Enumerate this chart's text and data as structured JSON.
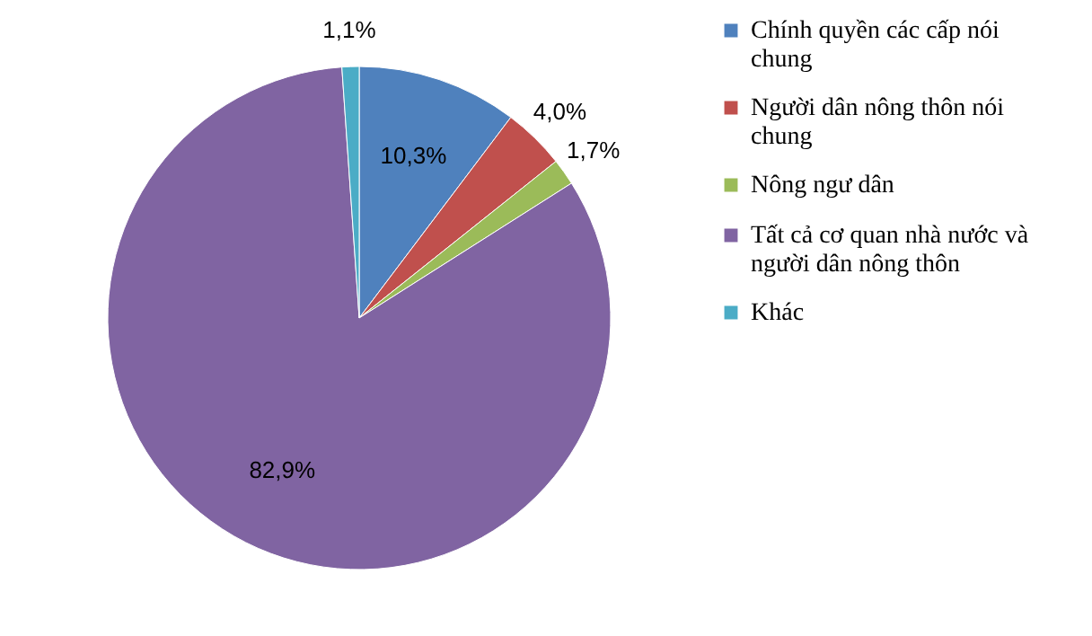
{
  "chart_data": {
    "type": "pie",
    "categories": [
      "Chính quyền các cấp nói chung",
      "Người dân nông thôn nói chung",
      "Nông ngư dân",
      "Tất cả cơ quan nhà nước và người dân nông thôn",
      "Khác"
    ],
    "values": [
      10.3,
      4.0,
      1.7,
      82.9,
      1.1
    ],
    "colors": [
      "#4f81bd",
      "#c0504d",
      "#9bbb59",
      "#8064a2",
      "#4bacc6"
    ],
    "value_labels": [
      "10,3%",
      "4,0%",
      "1,7%",
      "82,9%",
      "1,1%"
    ],
    "legend": "right"
  }
}
